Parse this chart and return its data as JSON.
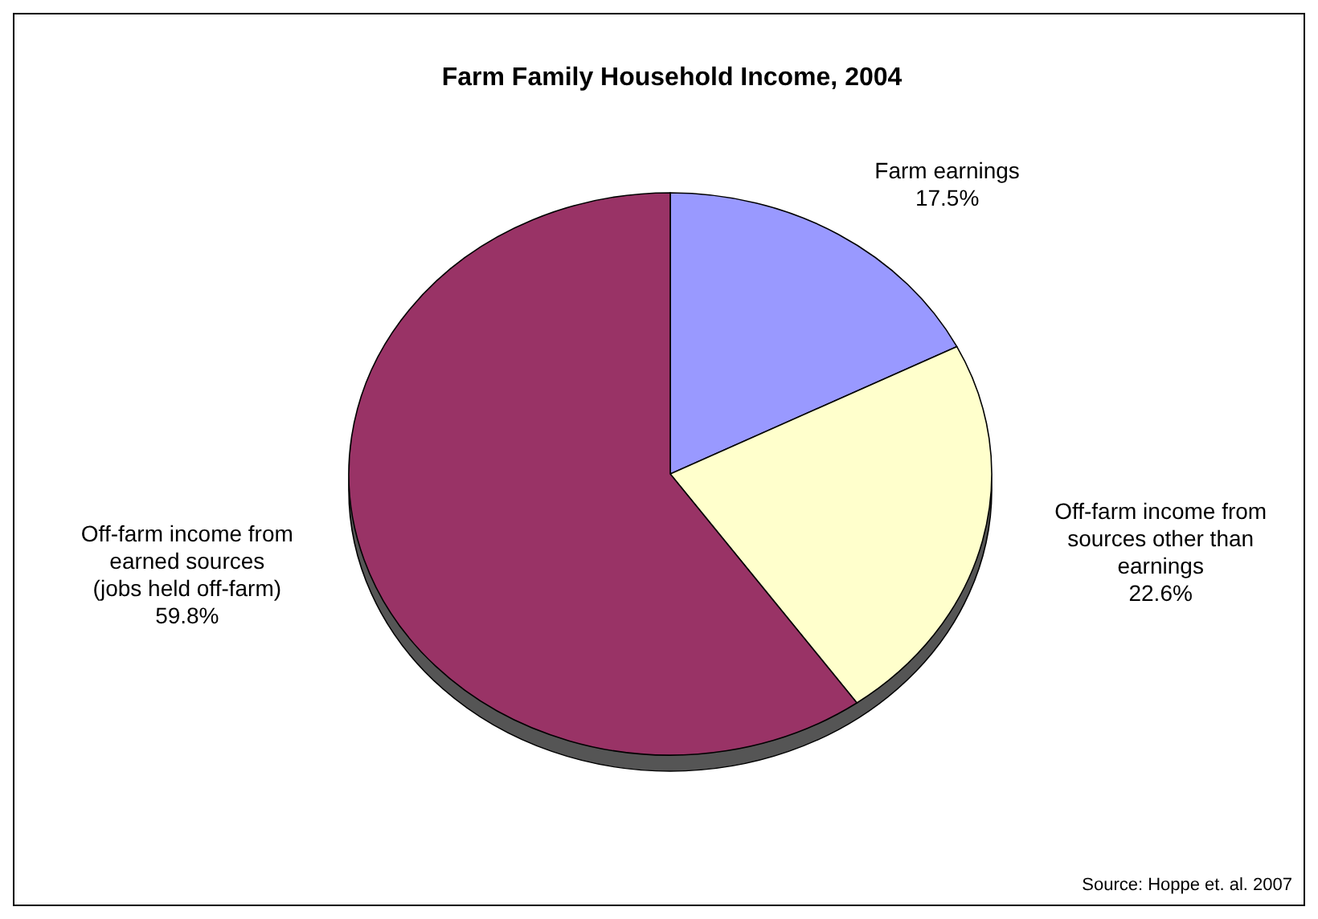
{
  "chart_data": {
    "type": "pie",
    "title": "Farm Family Household Income, 2004",
    "categories": [
      "Farm earnings",
      "Off-farm income from sources other than earnings",
      "Off-farm income from earned sources (jobs held off-farm)"
    ],
    "values": [
      17.5,
      22.6,
      59.8
    ],
    "colors": [
      "#9999ff",
      "#ffffcc",
      "#993366"
    ],
    "value_labels": [
      "17.5%",
      "22.6%",
      "59.8%"
    ],
    "annotations": [
      "Source: Hoppe et. al. 2007"
    ]
  }
}
